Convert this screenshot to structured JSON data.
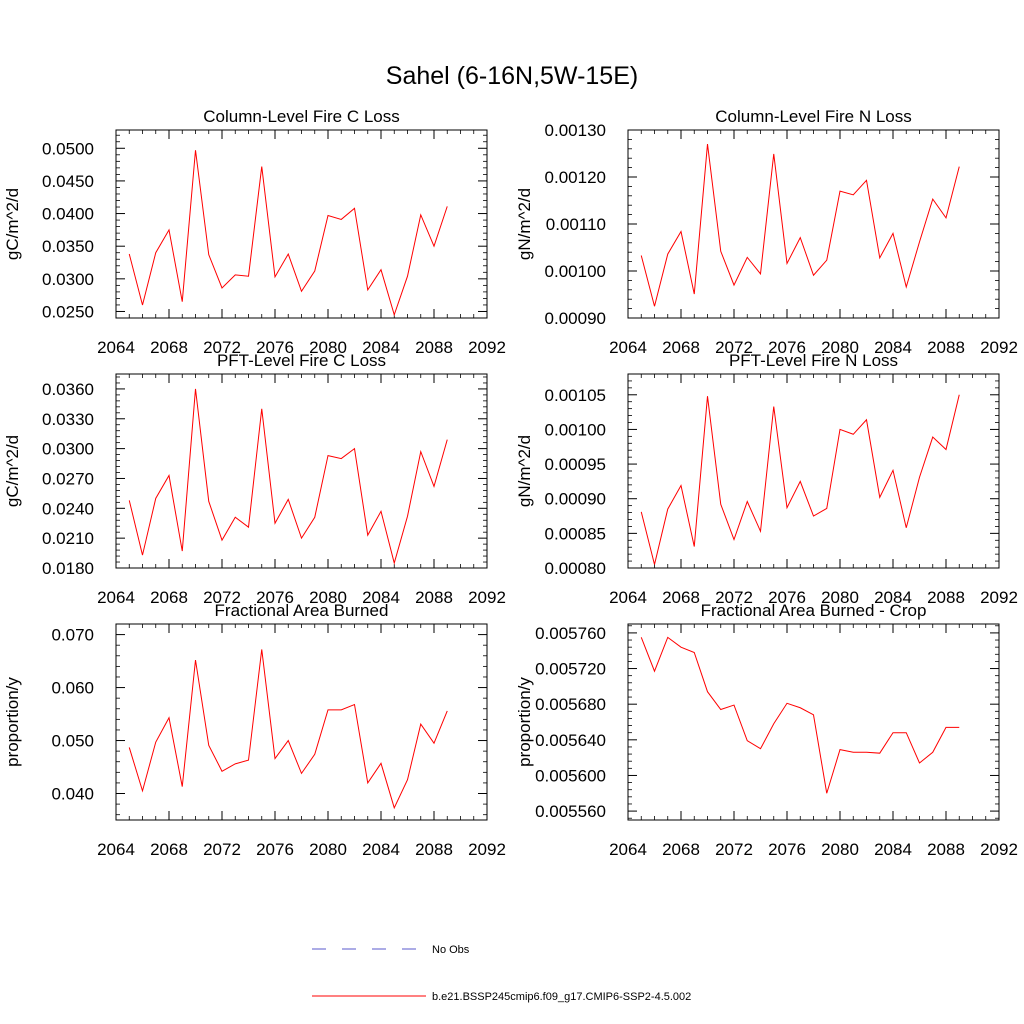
{
  "figure": {
    "title": "Sahel (6-16N,5W-15E)"
  },
  "legend": {
    "obs_label": "No Obs",
    "model_label": "b.e21.BSSP245cmip6.f09_g17.CMIP6-SSP2-4.5.002",
    "obs_color": "#5a5acd",
    "model_color": "#ff0000"
  },
  "chart_data": [
    {
      "type": "line",
      "title": "Column-Level Fire C Loss",
      "ylabel": "gC/m^2/d",
      "xlim": [
        2064,
        2092
      ],
      "ylim": [
        0.024,
        0.0528
      ],
      "xticks": [
        "2064",
        "2068",
        "2072",
        "2076",
        "2080",
        "2084",
        "2088",
        "2092"
      ],
      "yticks": [
        "0.0250",
        "0.0300",
        "0.0350",
        "0.0400",
        "0.0450",
        "0.0500"
      ],
      "series": [
        {
          "color": "#ff0000",
          "x": [
            2065,
            2066,
            2067,
            2068,
            2069,
            2070,
            2071,
            2072,
            2073,
            2074,
            2075,
            2076,
            2077,
            2078,
            2079,
            2080,
            2081,
            2082,
            2083,
            2084,
            2085,
            2086,
            2087,
            2088,
            2089
          ],
          "values": [
            0.0338,
            0.026,
            0.034,
            0.0375,
            0.0265,
            0.0497,
            0.0337,
            0.0286,
            0.0306,
            0.0304,
            0.0472,
            0.0303,
            0.0338,
            0.0281,
            0.0312,
            0.0397,
            0.0391,
            0.0408,
            0.0283,
            0.0314,
            0.0245,
            0.0304,
            0.0398,
            0.035,
            0.0411
          ]
        }
      ]
    },
    {
      "type": "line",
      "title": "Column-Level Fire N Loss",
      "ylabel": "gN/m^2/d",
      "xlim": [
        2064,
        2092
      ],
      "ylim": [
        0.0009,
        0.0013
      ],
      "xticks": [
        "2064",
        "2068",
        "2072",
        "2076",
        "2080",
        "2084",
        "2088",
        "2092"
      ],
      "yticks": [
        "0.00090",
        "0.00100",
        "0.00110",
        "0.00120",
        "0.00130"
      ],
      "series": [
        {
          "color": "#ff0000",
          "x": [
            2065,
            2066,
            2067,
            2068,
            2069,
            2070,
            2071,
            2072,
            2073,
            2074,
            2075,
            2076,
            2077,
            2078,
            2079,
            2080,
            2081,
            2082,
            2083,
            2084,
            2085,
            2086,
            2087,
            2088,
            2089
          ],
          "values": [
            0.001033,
            0.000925,
            0.001036,
            0.001084,
            0.000951,
            0.00127,
            0.001042,
            0.00097,
            0.001029,
            0.000994,
            0.001249,
            0.001016,
            0.001071,
            0.000991,
            0.001023,
            0.00117,
            0.001162,
            0.001193,
            0.001028,
            0.00108,
            0.000966,
            0.001062,
            0.001153,
            0.001113,
            0.001222
          ]
        }
      ]
    },
    {
      "type": "line",
      "title": "PFT-Level Fire C Loss",
      "ylabel": "gC/m^2/d",
      "xlim": [
        2064,
        2092
      ],
      "ylim": [
        0.018,
        0.0375
      ],
      "xticks": [
        "2064",
        "2068",
        "2072",
        "2076",
        "2080",
        "2084",
        "2088",
        "2092"
      ],
      "yticks": [
        "0.0180",
        "0.0210",
        "0.0240",
        "0.0270",
        "0.0300",
        "0.0330",
        "0.0360"
      ],
      "series": [
        {
          "color": "#ff0000",
          "x": [
            2065,
            2066,
            2067,
            2068,
            2069,
            2070,
            2071,
            2072,
            2073,
            2074,
            2075,
            2076,
            2077,
            2078,
            2079,
            2080,
            2081,
            2082,
            2083,
            2084,
            2085,
            2086,
            2087,
            2088,
            2089
          ],
          "values": [
            0.0248,
            0.0193,
            0.025,
            0.0273,
            0.0197,
            0.036,
            0.0247,
            0.0208,
            0.0231,
            0.0221,
            0.034,
            0.0225,
            0.0249,
            0.021,
            0.0231,
            0.0293,
            0.029,
            0.03,
            0.0213,
            0.0237,
            0.0185,
            0.0232,
            0.0297,
            0.0262,
            0.0309
          ]
        }
      ]
    },
    {
      "type": "line",
      "title": "PFT-Level Fire N Loss",
      "ylabel": "gN/m^2/d",
      "xlim": [
        2064,
        2092
      ],
      "ylim": [
        0.0008,
        0.00108
      ],
      "xticks": [
        "2064",
        "2068",
        "2072",
        "2076",
        "2080",
        "2084",
        "2088",
        "2092"
      ],
      "yticks": [
        "0.00080",
        "0.00085",
        "0.00090",
        "0.00095",
        "0.00100",
        "0.00105"
      ],
      "series": [
        {
          "color": "#ff0000",
          "x": [
            2065,
            2066,
            2067,
            2068,
            2069,
            2070,
            2071,
            2072,
            2073,
            2074,
            2075,
            2076,
            2077,
            2078,
            2079,
            2080,
            2081,
            2082,
            2083,
            2084,
            2085,
            2086,
            2087,
            2088,
            2089
          ],
          "values": [
            0.000881,
            0.000805,
            0.000885,
            0.000919,
            0.000831,
            0.001048,
            0.000892,
            0.000841,
            0.000896,
            0.000853,
            0.001033,
            0.000887,
            0.000925,
            0.000875,
            0.000886,
            0.001,
            0.000993,
            0.001014,
            0.000902,
            0.000941,
            0.000858,
            0.000931,
            0.000989,
            0.000971,
            0.00105
          ]
        }
      ]
    },
    {
      "type": "line",
      "title": "Fractional Area Burned",
      "ylabel": "proportion/y",
      "xlim": [
        2064,
        2092
      ],
      "ylim": [
        0.035,
        0.072
      ],
      "xticks": [
        "2064",
        "2068",
        "2072",
        "2076",
        "2080",
        "2084",
        "2088",
        "2092"
      ],
      "yticks": [
        "0.040",
        "0.050",
        "0.060",
        "0.070"
      ],
      "series": [
        {
          "color": "#ff0000",
          "x": [
            2065,
            2066,
            2067,
            2068,
            2069,
            2070,
            2071,
            2072,
            2073,
            2074,
            2075,
            2076,
            2077,
            2078,
            2079,
            2080,
            2081,
            2082,
            2083,
            2084,
            2085,
            2086,
            2087,
            2088,
            2089
          ],
          "values": [
            0.0487,
            0.0405,
            0.0497,
            0.0543,
            0.0413,
            0.0652,
            0.0491,
            0.0442,
            0.0456,
            0.0463,
            0.0672,
            0.0466,
            0.05,
            0.0438,
            0.0474,
            0.0558,
            0.0558,
            0.0568,
            0.042,
            0.0457,
            0.0373,
            0.0426,
            0.0531,
            0.0495,
            0.0556
          ]
        }
      ]
    },
    {
      "type": "line",
      "title": "Fractional Area Burned - Crop",
      "ylabel": "proportion/y",
      "xlim": [
        2064,
        2092
      ],
      "ylim": [
        0.00555,
        0.00577
      ],
      "xticks": [
        "2064",
        "2068",
        "2072",
        "2076",
        "2080",
        "2084",
        "2088",
        "2092"
      ],
      "yticks": [
        "0.005560",
        "0.005600",
        "0.005640",
        "0.005680",
        "0.005720",
        "0.005760"
      ],
      "series": [
        {
          "color": "#ff0000",
          "x": [
            2065,
            2066,
            2067,
            2068,
            2069,
            2070,
            2071,
            2072,
            2073,
            2074,
            2075,
            2076,
            2077,
            2078,
            2079,
            2080,
            2081,
            2082,
            2083,
            2084,
            2085,
            2086,
            2087,
            2088,
            2089
          ],
          "values": [
            0.005755,
            0.005717,
            0.005755,
            0.005744,
            0.005738,
            0.005694,
            0.005674,
            0.005679,
            0.005639,
            0.00563,
            0.005658,
            0.005681,
            0.005676,
            0.005668,
            0.00558,
            0.005629,
            0.005626,
            0.005626,
            0.005625,
            0.005648,
            0.005648,
            0.005614,
            0.005626,
            0.005654,
            0.005654
          ]
        }
      ]
    }
  ]
}
